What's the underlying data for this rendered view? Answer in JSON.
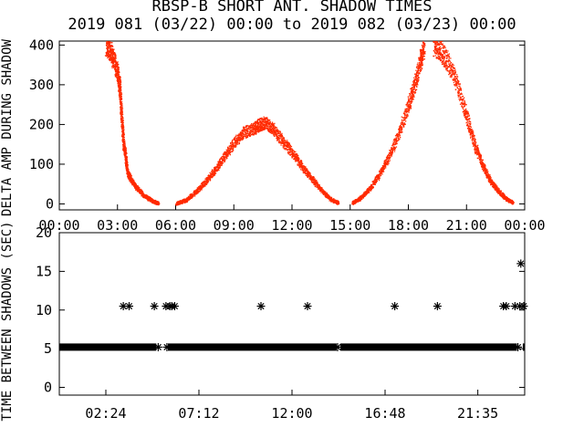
{
  "title_line1": "RBSP-B SHORT ANT. SHADOW TIMES",
  "title_line2": "2019 081 (03/22) 00:00 to 2019 082 (03/23) 00:00",
  "chart_data": [
    {
      "type": "scatter",
      "panel": "top",
      "ylabel": "DELTA AMP DURING SHADOW",
      "xlabel": "",
      "x_unit": "hours",
      "xlim": [
        0,
        24
      ],
      "ylim": [
        -15,
        410
      ],
      "x_tick_labels": [
        "00:00",
        "03:00",
        "06:00",
        "09:00",
        "12:00",
        "15:00",
        "18:00",
        "21:00",
        "00:00"
      ],
      "x_ticks": [
        0,
        3,
        6,
        9,
        12,
        15,
        18,
        21,
        24
      ],
      "y_tick_labels": [
        "0",
        "100",
        "200",
        "300",
        "400"
      ],
      "y_ticks": [
        0,
        100,
        200,
        300,
        400
      ],
      "marker_color": "#ff2a00",
      "series": [
        {
          "points": [
            [
              2.4,
              400
            ],
            [
              2.6,
              390
            ],
            [
              2.8,
              360
            ],
            [
              3.0,
              330
            ],
            [
              3.1,
              290
            ],
            [
              3.2,
              220
            ],
            [
              3.3,
              150
            ],
            [
              3.4,
              120
            ],
            [
              3.5,
              80
            ],
            [
              3.7,
              60
            ],
            [
              4.0,
              40
            ],
            [
              4.4,
              20
            ],
            [
              4.8,
              8
            ],
            [
              5.1,
              2
            ]
          ]
        },
        {
          "points": [
            [
              6.0,
              2
            ],
            [
              6.5,
              10
            ],
            [
              7.0,
              30
            ],
            [
              7.5,
              55
            ],
            [
              8.0,
              85
            ],
            [
              8.5,
              120
            ],
            [
              9.0,
              155
            ],
            [
              9.5,
              180
            ],
            [
              10.0,
              190
            ],
            [
              10.3,
              200
            ],
            [
              10.6,
              205
            ],
            [
              11.0,
              190
            ],
            [
              11.5,
              160
            ],
            [
              12.0,
              130
            ],
            [
              12.5,
              95
            ],
            [
              13.0,
              65
            ],
            [
              13.5,
              35
            ],
            [
              14.0,
              12
            ],
            [
              14.4,
              3
            ]
          ]
        },
        {
          "points": [
            [
              15.1,
              3
            ],
            [
              15.5,
              15
            ],
            [
              16.0,
              40
            ],
            [
              16.5,
              75
            ],
            [
              17.0,
              120
            ],
            [
              17.5,
              180
            ],
            [
              18.0,
              250
            ],
            [
              18.3,
              300
            ],
            [
              18.6,
              360
            ],
            [
              18.8,
              400
            ]
          ]
        },
        {
          "points": [
            [
              19.3,
              400
            ],
            [
              19.6,
              390
            ],
            [
              20.0,
              360
            ],
            [
              20.5,
              300
            ],
            [
              21.0,
              220
            ],
            [
              21.4,
              150
            ],
            [
              21.8,
              100
            ],
            [
              22.2,
              60
            ],
            [
              22.6,
              35
            ],
            [
              23.0,
              15
            ],
            [
              23.4,
              3
            ]
          ]
        }
      ]
    },
    {
      "type": "scatter",
      "panel": "bottom",
      "ylabel": "TIME BETWEEN SHADOWS (SEC)",
      "xlabel": "",
      "x_unit": "hours",
      "xlim": [
        0,
        24
      ],
      "ylim": [
        -1,
        20
      ],
      "x_tick_labels": [
        "02:24",
        "07:12",
        "12:00",
        "16:48",
        "21:35"
      ],
      "x_ticks": [
        2.4,
        7.2,
        12.0,
        16.8,
        21.583
      ],
      "y_tick_labels": [
        "0",
        "5",
        "10",
        "15",
        "20"
      ],
      "y_ticks": [
        0,
        5,
        10,
        15,
        20
      ],
      "marker": "asterisk",
      "base_level": 5.2,
      "base_segments": [
        [
          0,
          5.0
        ],
        [
          5.6,
          14.3
        ],
        [
          14.5,
          23.6
        ],
        [
          23.9,
          24
        ]
      ],
      "points": [
        [
          3.3,
          10.5
        ],
        [
          3.6,
          10.5
        ],
        [
          4.9,
          10.5
        ],
        [
          5.5,
          10.5
        ],
        [
          5.7,
          10.5
        ],
        [
          5.8,
          10.5
        ],
        [
          5.95,
          10.5
        ],
        [
          10.4,
          10.5
        ],
        [
          12.8,
          10.5
        ],
        [
          17.3,
          10.5
        ],
        [
          19.5,
          10.5
        ],
        [
          22.9,
          10.5
        ],
        [
          23.05,
          10.5
        ],
        [
          23.5,
          10.5
        ],
        [
          23.75,
          10.5
        ],
        [
          23.95,
          10.5
        ],
        [
          23.8,
          16.0
        ],
        [
          5.1,
          5.2
        ],
        [
          5.55,
          5.2
        ],
        [
          14.35,
          5.2
        ],
        [
          23.65,
          5.2
        ]
      ]
    }
  ]
}
